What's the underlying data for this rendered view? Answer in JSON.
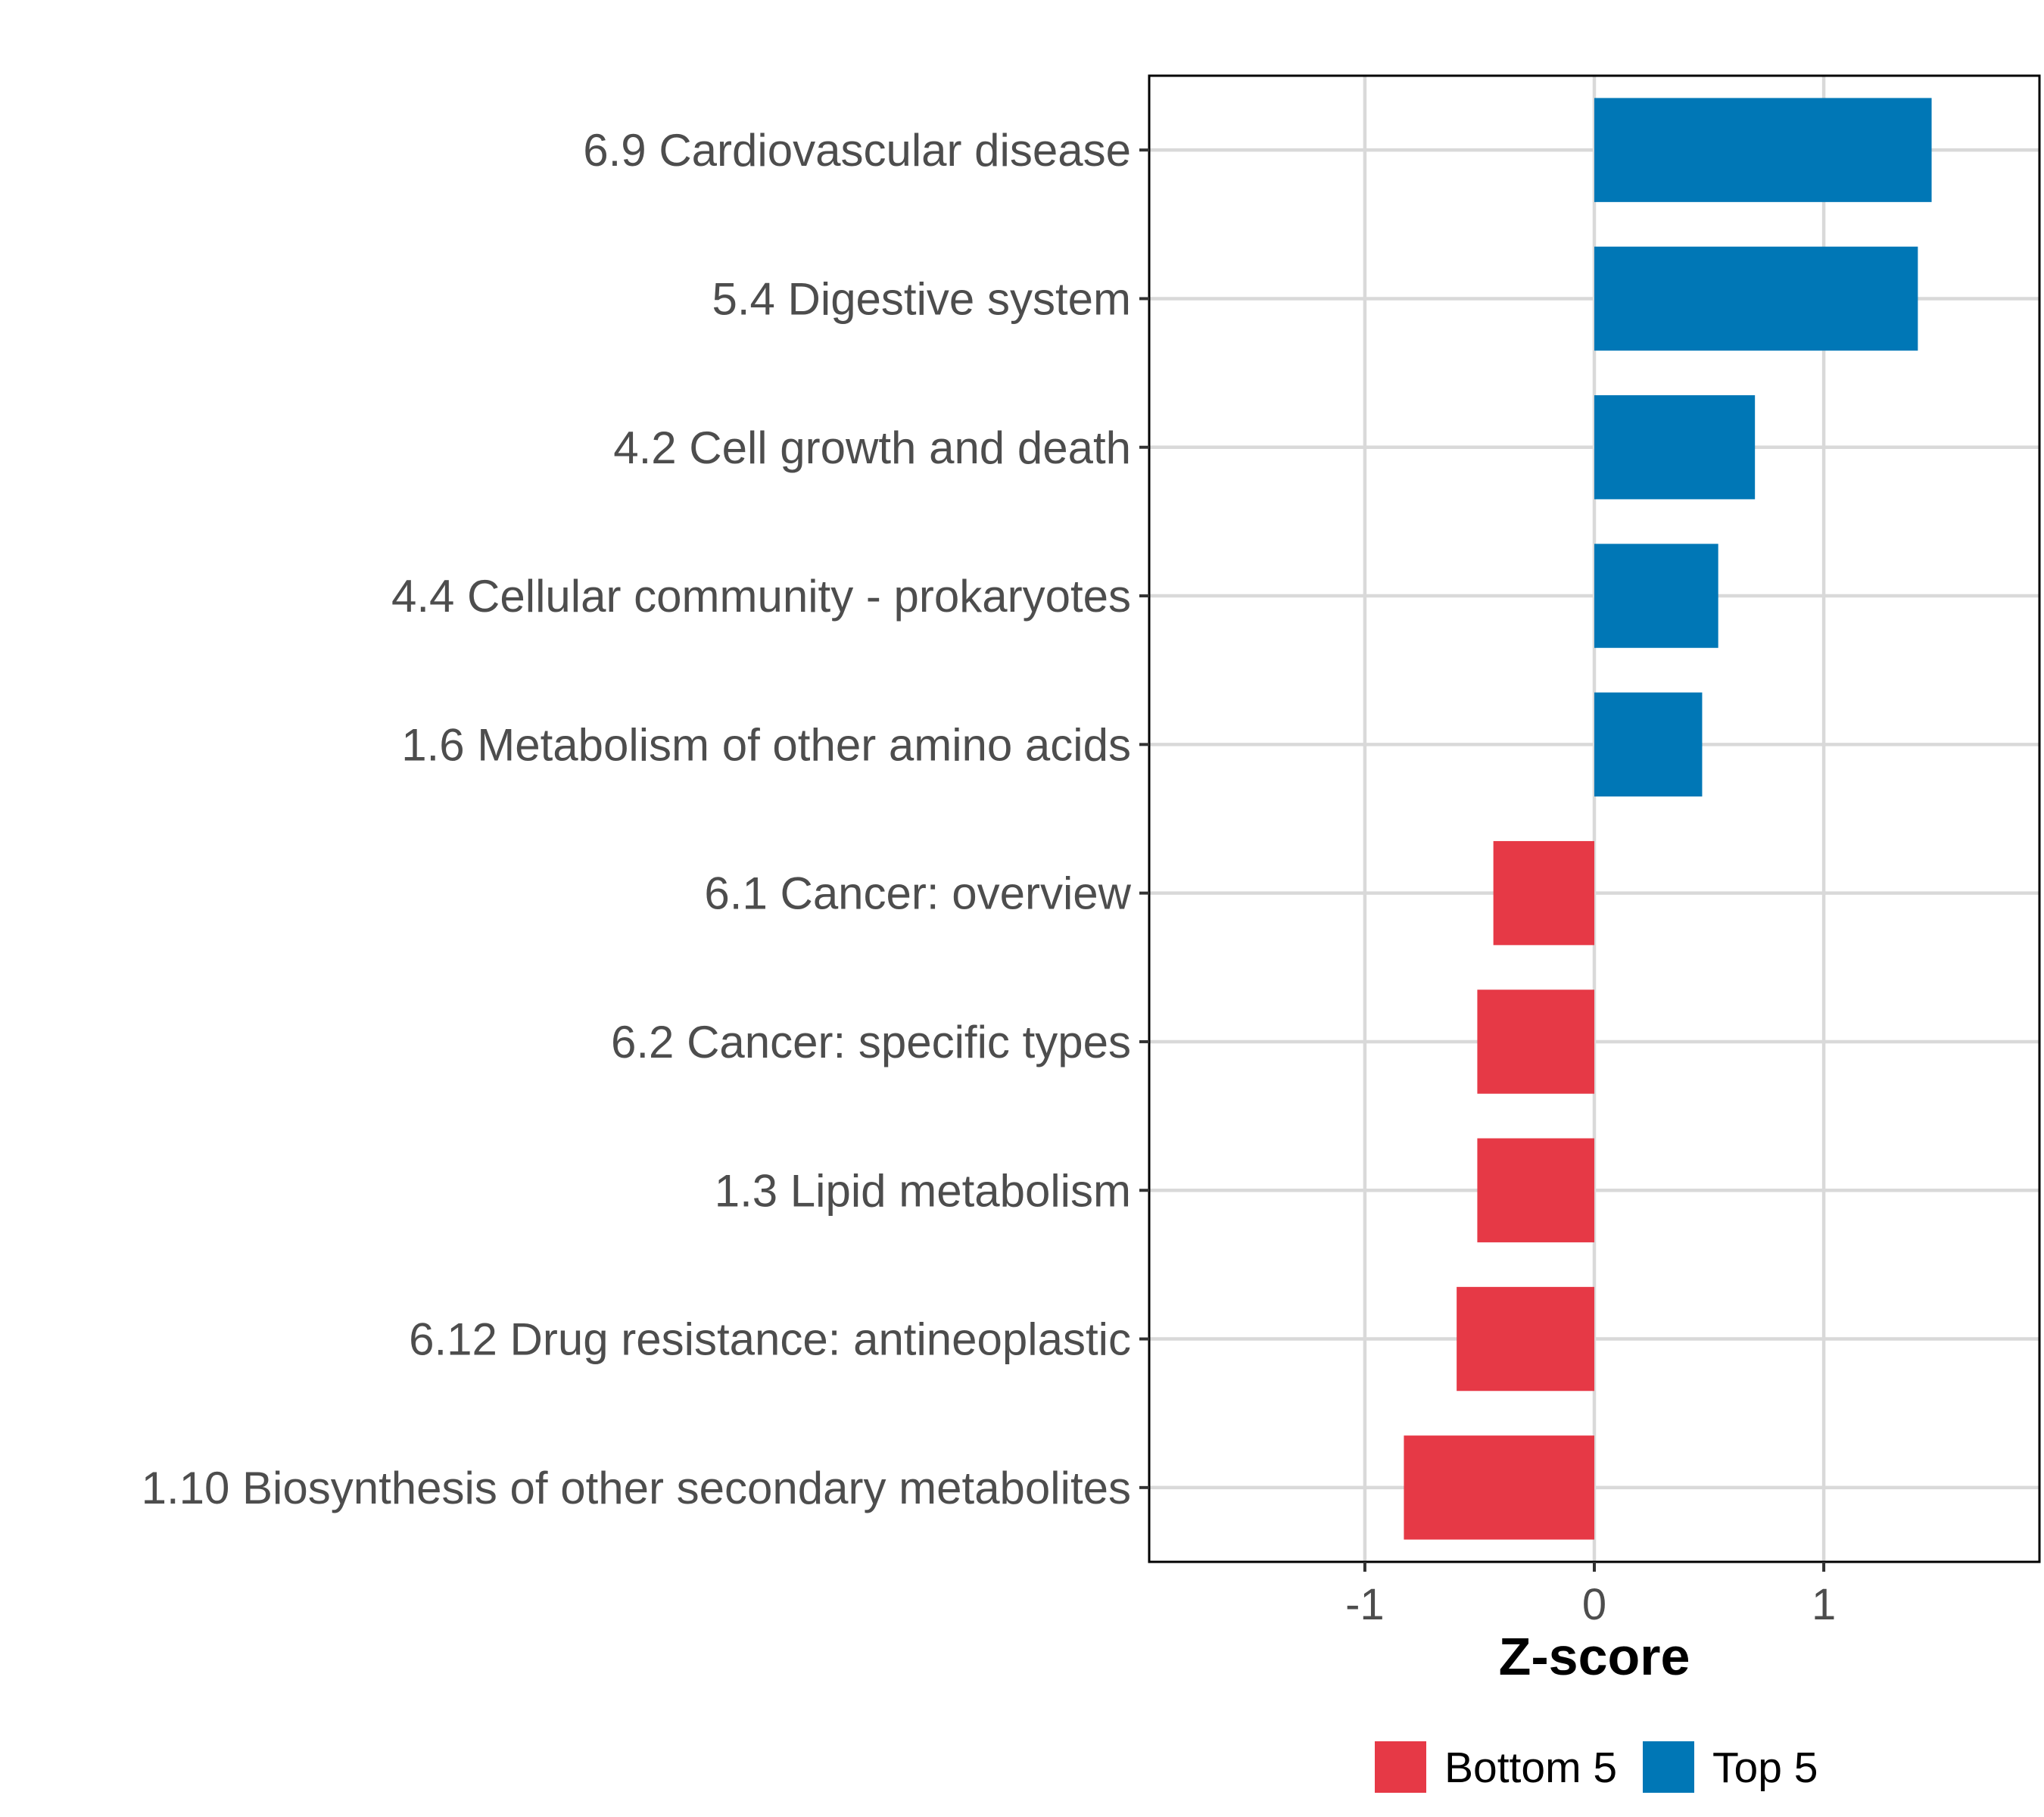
{
  "chart_data": {
    "type": "bar",
    "orientation": "horizontal",
    "title": "",
    "xlabel": "Z-score",
    "ylabel": "",
    "xlim": [
      -1.94,
      1.94
    ],
    "xticks": [
      -1,
      0,
      1
    ],
    "xtick_labels": [
      "-1",
      "0",
      "1"
    ],
    "grid": true,
    "legend_position": "bottom",
    "categories": [
      "6.9 Cardiovascular disease",
      "5.4 Digestive system",
      "4.2 Cell growth and death",
      "4.4 Cellular community - prokaryotes",
      "1.6 Metabolism of other amino acids",
      "6.1 Cancer: overview",
      "6.2 Cancer: specific types",
      "1.3 Lipid metabolism",
      "6.12 Drug resistance: antineoplastic",
      "1.10 Biosynthesis of other secondary metabolites"
    ],
    "values": [
      1.47,
      1.41,
      0.7,
      0.54,
      0.47,
      -0.44,
      -0.51,
      -0.51,
      -0.6,
      -0.83
    ],
    "groups": [
      "Top 5",
      "Top 5",
      "Top 5",
      "Top 5",
      "Top 5",
      "Bottom 5",
      "Bottom 5",
      "Bottom 5",
      "Bottom 5",
      "Bottom 5"
    ],
    "legend": [
      {
        "name": "Bottom 5",
        "color": "#e63946"
      },
      {
        "name": "Top 5",
        "color": "#0077b6"
      }
    ]
  },
  "colors": {
    "Top 5": "#0077b6",
    "Bottom 5": "#e63946",
    "grid": "#d9d9d9",
    "panel_border": "#000000"
  }
}
